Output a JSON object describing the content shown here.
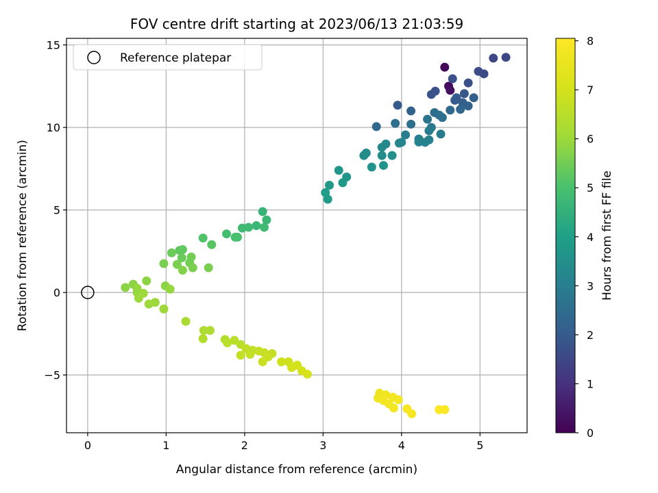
{
  "chart_data": {
    "type": "scatter",
    "title": "FOV centre drift starting at 2023/06/13 21:03:59",
    "xlabel": "Angular distance from reference (arcmin)",
    "ylabel": "Rotation from reference (arcmin)",
    "xlim": [
      -0.27,
      5.6
    ],
    "ylim": [
      -8.5,
      15.4
    ],
    "xticks": [
      0,
      1,
      2,
      3,
      4,
      5
    ],
    "yticks": [
      -5,
      0,
      5,
      10,
      15
    ],
    "grid": true,
    "legend": {
      "placement": "upper left",
      "entries": [
        {
          "label": "Reference platepar",
          "marker": "hollow-circle",
          "x": 0,
          "y": 0
        }
      ]
    },
    "colorbar": {
      "label": "Hours from first FF file",
      "colormap": "viridis",
      "range": [
        0,
        8.05
      ],
      "ticks": [
        0,
        1,
        2,
        3,
        4,
        5,
        6,
        7,
        8
      ]
    },
    "points": [
      {
        "x": 4.55,
        "y": 13.65,
        "h": 0.1
      },
      {
        "x": 4.6,
        "y": 12.5,
        "h": 0.2
      },
      {
        "x": 4.62,
        "y": 12.25,
        "h": 0.3
      },
      {
        "x": 5.17,
        "y": 14.2,
        "h": 1.5
      },
      {
        "x": 5.33,
        "y": 14.25,
        "h": 1.5
      },
      {
        "x": 4.98,
        "y": 13.4,
        "h": 1.6
      },
      {
        "x": 5.05,
        "y": 13.25,
        "h": 1.6
      },
      {
        "x": 4.85,
        "y": 12.7,
        "h": 1.7
      },
      {
        "x": 4.65,
        "y": 12.95,
        "h": 1.7
      },
      {
        "x": 4.43,
        "y": 12.2,
        "h": 1.8
      },
      {
        "x": 4.38,
        "y": 12.0,
        "h": 1.8
      },
      {
        "x": 4.8,
        "y": 12.05,
        "h": 1.9
      },
      {
        "x": 4.7,
        "y": 11.8,
        "h": 2.0
      },
      {
        "x": 4.68,
        "y": 11.65,
        "h": 2.0
      },
      {
        "x": 4.92,
        "y": 11.8,
        "h": 2.1
      },
      {
        "x": 4.78,
        "y": 11.5,
        "h": 2.1
      },
      {
        "x": 4.85,
        "y": 11.3,
        "h": 2.2
      },
      {
        "x": 4.75,
        "y": 11.1,
        "h": 2.3
      },
      {
        "x": 3.95,
        "y": 11.35,
        "h": 2.0
      },
      {
        "x": 4.12,
        "y": 11.0,
        "h": 2.2
      },
      {
        "x": 4.62,
        "y": 11.05,
        "h": 2.4
      },
      {
        "x": 4.42,
        "y": 10.9,
        "h": 2.5
      },
      {
        "x": 4.48,
        "y": 10.75,
        "h": 2.6
      },
      {
        "x": 4.52,
        "y": 10.6,
        "h": 2.6
      },
      {
        "x": 4.33,
        "y": 10.5,
        "h": 2.7
      },
      {
        "x": 3.68,
        "y": 10.05,
        "h": 2.4
      },
      {
        "x": 3.92,
        "y": 10.25,
        "h": 2.5
      },
      {
        "x": 4.12,
        "y": 10.2,
        "h": 2.6
      },
      {
        "x": 4.38,
        "y": 10.0,
        "h": 2.8
      },
      {
        "x": 4.35,
        "y": 9.8,
        "h": 2.9
      },
      {
        "x": 4.5,
        "y": 9.6,
        "h": 2.9
      },
      {
        "x": 4.05,
        "y": 9.55,
        "h": 2.9
      },
      {
        "x": 4.22,
        "y": 9.3,
        "h": 3.0
      },
      {
        "x": 4.35,
        "y": 9.25,
        "h": 3.0
      },
      {
        "x": 4.3,
        "y": 9.1,
        "h": 3.1
      },
      {
        "x": 4.22,
        "y": 9.12,
        "h": 3.1
      },
      {
        "x": 3.97,
        "y": 9.05,
        "h": 3.2
      },
      {
        "x": 4.0,
        "y": 9.1,
        "h": 3.2
      },
      {
        "x": 3.8,
        "y": 9.0,
        "h": 3.3
      },
      {
        "x": 3.75,
        "y": 8.8,
        "h": 3.3
      },
      {
        "x": 3.55,
        "y": 8.45,
        "h": 3.4
      },
      {
        "x": 3.52,
        "y": 8.3,
        "h": 3.4
      },
      {
        "x": 3.75,
        "y": 8.3,
        "h": 3.4
      },
      {
        "x": 3.88,
        "y": 8.3,
        "h": 3.5
      },
      {
        "x": 3.62,
        "y": 7.6,
        "h": 3.6
      },
      {
        "x": 3.77,
        "y": 7.7,
        "h": 3.6
      },
      {
        "x": 3.2,
        "y": 7.4,
        "h": 3.7
      },
      {
        "x": 3.3,
        "y": 7.0,
        "h": 3.7
      },
      {
        "x": 3.25,
        "y": 6.65,
        "h": 3.8
      },
      {
        "x": 3.08,
        "y": 6.5,
        "h": 3.8
      },
      {
        "x": 3.03,
        "y": 6.05,
        "h": 3.9
      },
      {
        "x": 3.06,
        "y": 5.65,
        "h": 3.9
      },
      {
        "x": 2.23,
        "y": 4.9,
        "h": 4.6
      },
      {
        "x": 2.28,
        "y": 4.4,
        "h": 4.7
      },
      {
        "x": 2.15,
        "y": 4.05,
        "h": 4.7
      },
      {
        "x": 2.05,
        "y": 3.95,
        "h": 4.8
      },
      {
        "x": 1.97,
        "y": 3.9,
        "h": 4.8
      },
      {
        "x": 2.25,
        "y": 3.95,
        "h": 4.8
      },
      {
        "x": 1.77,
        "y": 3.55,
        "h": 4.9
      },
      {
        "x": 1.88,
        "y": 3.35,
        "h": 5.0
      },
      {
        "x": 1.91,
        "y": 3.35,
        "h": 5.0
      },
      {
        "x": 1.47,
        "y": 3.3,
        "h": 5.1
      },
      {
        "x": 1.58,
        "y": 2.9,
        "h": 5.2
      },
      {
        "x": 1.17,
        "y": 2.55,
        "h": 5.3
      },
      {
        "x": 1.21,
        "y": 2.6,
        "h": 5.3
      },
      {
        "x": 1.07,
        "y": 2.4,
        "h": 5.4
      },
      {
        "x": 1.2,
        "y": 2.1,
        "h": 5.4
      },
      {
        "x": 1.32,
        "y": 2.15,
        "h": 5.5
      },
      {
        "x": 1.3,
        "y": 1.8,
        "h": 5.5
      },
      {
        "x": 1.14,
        "y": 1.7,
        "h": 5.6
      },
      {
        "x": 0.97,
        "y": 1.75,
        "h": 5.6
      },
      {
        "x": 1.34,
        "y": 1.5,
        "h": 5.6
      },
      {
        "x": 1.54,
        "y": 1.5,
        "h": 5.6
      },
      {
        "x": 1.21,
        "y": 1.35,
        "h": 5.7
      },
      {
        "x": 0.75,
        "y": 0.7,
        "h": 5.8
      },
      {
        "x": 0.58,
        "y": 0.5,
        "h": 5.8
      },
      {
        "x": 0.48,
        "y": 0.3,
        "h": 5.8
      },
      {
        "x": 0.99,
        "y": 0.4,
        "h": 5.8
      },
      {
        "x": 1.05,
        "y": 0.2,
        "h": 5.9
      },
      {
        "x": 0.63,
        "y": 0.25,
        "h": 5.9
      },
      {
        "x": 0.63,
        "y": 0.0,
        "h": 5.9
      },
      {
        "x": 0.71,
        "y": -0.05,
        "h": 6.0
      },
      {
        "x": 0.65,
        "y": -0.35,
        "h": 6.0
      },
      {
        "x": 0.86,
        "y": -0.6,
        "h": 6.0
      },
      {
        "x": 0.78,
        "y": -0.7,
        "h": 6.0
      },
      {
        "x": 0.97,
        "y": -1.0,
        "h": 6.0
      },
      {
        "x": 1.25,
        "y": -1.75,
        "h": 6.2
      },
      {
        "x": 1.48,
        "y": -2.3,
        "h": 6.3
      },
      {
        "x": 1.56,
        "y": -2.3,
        "h": 6.3
      },
      {
        "x": 1.47,
        "y": -2.8,
        "h": 6.4
      },
      {
        "x": 1.75,
        "y": -2.85,
        "h": 6.4
      },
      {
        "x": 1.87,
        "y": -2.9,
        "h": 6.5
      },
      {
        "x": 1.78,
        "y": -3.05,
        "h": 6.5
      },
      {
        "x": 1.95,
        "y": -3.15,
        "h": 6.5
      },
      {
        "x": 2.02,
        "y": -3.4,
        "h": 6.6
      },
      {
        "x": 2.1,
        "y": -3.5,
        "h": 6.6
      },
      {
        "x": 2.18,
        "y": -3.55,
        "h": 6.7
      },
      {
        "x": 2.25,
        "y": -3.65,
        "h": 6.7
      },
      {
        "x": 2.35,
        "y": -3.7,
        "h": 6.7
      },
      {
        "x": 1.95,
        "y": -3.8,
        "h": 6.7
      },
      {
        "x": 2.07,
        "y": -3.75,
        "h": 6.7
      },
      {
        "x": 2.3,
        "y": -3.9,
        "h": 6.8
      },
      {
        "x": 2.23,
        "y": -4.2,
        "h": 6.8
      },
      {
        "x": 2.47,
        "y": -4.2,
        "h": 6.9
      },
      {
        "x": 2.56,
        "y": -4.2,
        "h": 6.9
      },
      {
        "x": 2.67,
        "y": -4.4,
        "h": 7.0
      },
      {
        "x": 2.6,
        "y": -4.55,
        "h": 7.0
      },
      {
        "x": 2.73,
        "y": -4.75,
        "h": 7.0
      },
      {
        "x": 2.8,
        "y": -4.95,
        "h": 7.1
      },
      {
        "x": 3.72,
        "y": -6.1,
        "h": 7.7
      },
      {
        "x": 3.8,
        "y": -6.2,
        "h": 7.7
      },
      {
        "x": 3.7,
        "y": -6.4,
        "h": 7.7
      },
      {
        "x": 3.77,
        "y": -6.55,
        "h": 7.8
      },
      {
        "x": 3.89,
        "y": -6.35,
        "h": 7.8
      },
      {
        "x": 3.96,
        "y": -6.5,
        "h": 7.8
      },
      {
        "x": 3.84,
        "y": -6.75,
        "h": 7.8
      },
      {
        "x": 3.9,
        "y": -7.0,
        "h": 7.8
      },
      {
        "x": 4.07,
        "y": -7.05,
        "h": 7.9
      },
      {
        "x": 4.13,
        "y": -7.35,
        "h": 7.9
      },
      {
        "x": 4.48,
        "y": -7.1,
        "h": 8.0
      },
      {
        "x": 4.55,
        "y": -7.1,
        "h": 8.0
      }
    ]
  }
}
